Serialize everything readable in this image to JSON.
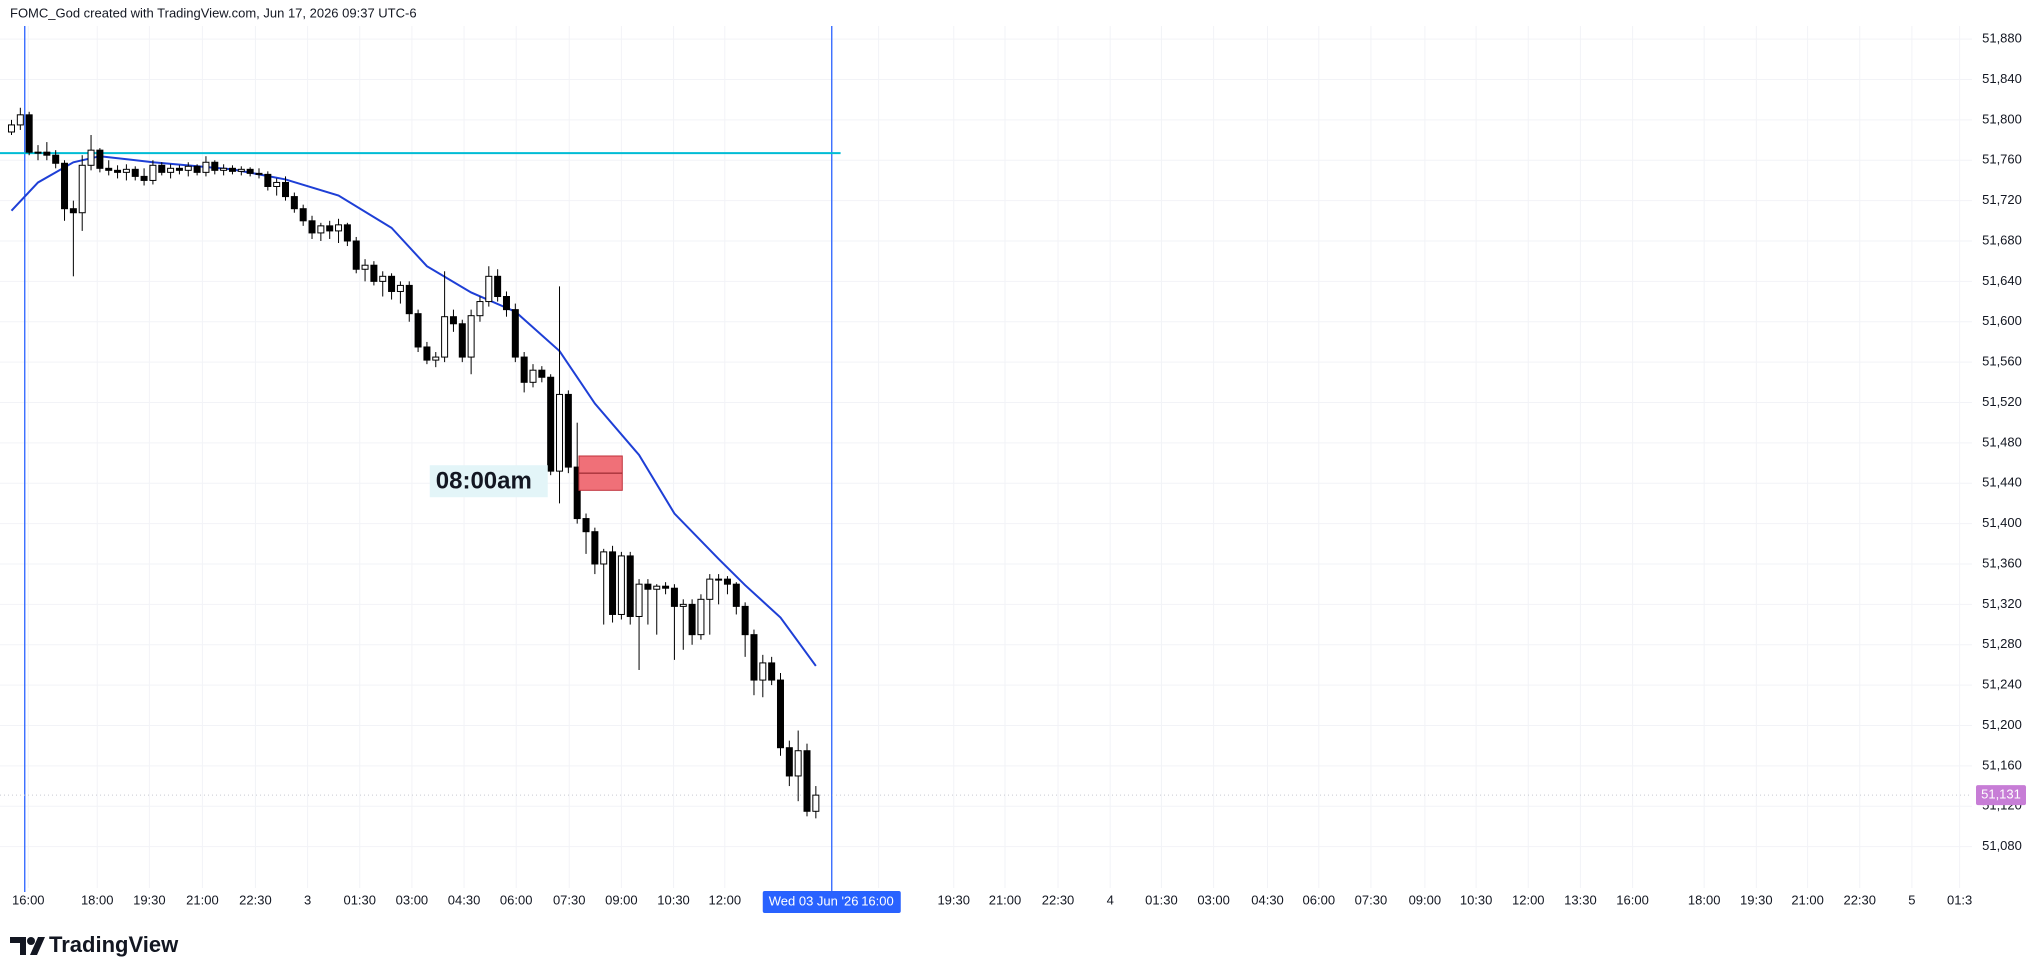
{
  "header": "FOMC_God created with TradingView.com, Jun 17, 2026 09:37 UTC-6",
  "brand": "TradingView",
  "chart_data": {
    "type": "candlestick",
    "x": [
      0,
      1,
      2,
      3,
      4,
      5,
      6,
      7,
      8,
      9,
      10,
      11,
      12,
      13,
      14,
      15,
      16,
      17,
      18,
      19,
      20,
      21,
      22,
      23,
      24,
      25,
      26,
      27,
      28,
      29,
      30,
      31,
      32,
      33,
      34,
      35,
      36,
      37,
      38,
      39,
      40,
      41,
      42,
      43,
      44,
      45,
      46,
      47,
      48,
      49,
      50,
      51,
      52,
      53,
      54,
      55,
      56,
      57,
      58,
      59,
      60,
      61,
      62,
      63,
      64,
      65,
      66,
      67,
      68,
      69,
      70,
      71,
      72,
      73,
      74,
      75,
      76,
      77,
      78,
      79,
      80,
      81,
      82,
      83,
      84,
      85,
      86,
      87,
      88,
      89,
      90,
      91
    ],
    "ohlc": [
      [
        51788,
        51800,
        51785,
        51795
      ],
      [
        51795,
        51812,
        51790,
        51805
      ],
      [
        51805,
        51808,
        51765,
        51768
      ],
      [
        51768,
        51775,
        51760,
        51768
      ],
      [
        51768,
        51778,
        51760,
        51765
      ],
      [
        51765,
        51770,
        51752,
        51757
      ],
      [
        51757,
        51760,
        51700,
        51712
      ],
      [
        51712,
        51720,
        51645,
        51708
      ],
      [
        51708,
        51765,
        51690,
        51755
      ],
      [
        51755,
        51785,
        51750,
        51770
      ],
      [
        51770,
        51772,
        51748,
        51752
      ],
      [
        51752,
        51760,
        51745,
        51750
      ],
      [
        51750,
        51755,
        51742,
        51748
      ],
      [
        51748,
        51756,
        51740,
        51751
      ],
      [
        51751,
        51754,
        51740,
        51744
      ],
      [
        51744,
        51752,
        51735,
        51740
      ],
      [
        51740,
        51760,
        51736,
        51755
      ],
      [
        51755,
        51758,
        51745,
        51748
      ],
      [
        51748,
        51756,
        51742,
        51752
      ],
      [
        51752,
        51755,
        51746,
        51750
      ],
      [
        51750,
        51758,
        51744,
        51754
      ],
      [
        51754,
        51756,
        51745,
        51748
      ],
      [
        51748,
        51764,
        51744,
        51758
      ],
      [
        51758,
        51760,
        51746,
        51750
      ],
      [
        51750,
        51756,
        51745,
        51752
      ],
      [
        51752,
        51755,
        51746,
        51749
      ],
      [
        51749,
        51754,
        51745,
        51751
      ],
      [
        51751,
        51753,
        51744,
        51747
      ],
      [
        51747,
        51752,
        51742,
        51746
      ],
      [
        51746,
        51749,
        51730,
        51734
      ],
      [
        51734,
        51742,
        51725,
        51738
      ],
      [
        51738,
        51744,
        51720,
        51724
      ],
      [
        51724,
        51728,
        51708,
        51712
      ],
      [
        51712,
        51716,
        51695,
        51700
      ],
      [
        51700,
        51705,
        51682,
        51688
      ],
      [
        51688,
        51698,
        51680,
        51695
      ],
      [
        51695,
        51700,
        51682,
        51690
      ],
      [
        51690,
        51702,
        51678,
        51696
      ],
      [
        51696,
        51698,
        51675,
        51680
      ],
      [
        51680,
        51684,
        51648,
        51652
      ],
      [
        51652,
        51662,
        51640,
        51656
      ],
      [
        51656,
        51660,
        51636,
        51640
      ],
      [
        51640,
        51650,
        51625,
        51645
      ],
      [
        51645,
        51648,
        51622,
        51630
      ],
      [
        51630,
        51640,
        51618,
        51636
      ],
      [
        51636,
        51640,
        51600,
        51608
      ],
      [
        51608,
        51612,
        51570,
        51575
      ],
      [
        51575,
        51580,
        51558,
        51562
      ],
      [
        51562,
        51570,
        51555,
        51565
      ],
      [
        51565,
        51650,
        51560,
        51605
      ],
      [
        51605,
        51612,
        51590,
        51598
      ],
      [
        51598,
        51602,
        51560,
        51565
      ],
      [
        51565,
        51612,
        51548,
        51606
      ],
      [
        51606,
        51625,
        51600,
        51620
      ],
      [
        51620,
        51655,
        51615,
        51645
      ],
      [
        51645,
        51652,
        51620,
        51625
      ],
      [
        51625,
        51630,
        51605,
        51612
      ],
      [
        51612,
        51618,
        51560,
        51565
      ],
      [
        51565,
        51570,
        51530,
        51540
      ],
      [
        51540,
        51558,
        51535,
        51552
      ],
      [
        51552,
        51556,
        51540,
        51545
      ],
      [
        51545,
        51548,
        51448,
        51452
      ],
      [
        51452,
        51635,
        51420,
        51528
      ],
      [
        51528,
        51532,
        51450,
        51456
      ],
      [
        51456,
        51500,
        51400,
        51405
      ],
      [
        51405,
        51410,
        51370,
        51392
      ],
      [
        51392,
        51396,
        51350,
        51360
      ],
      [
        51360,
        51375,
        51300,
        51372
      ],
      [
        51372,
        51378,
        51302,
        51310
      ],
      [
        51310,
        51372,
        51305,
        51368
      ],
      [
        51368,
        51372,
        51300,
        51308
      ],
      [
        51308,
        51345,
        51255,
        51340
      ],
      [
        51340,
        51345,
        51300,
        51335
      ],
      [
        51335,
        51340,
        51290,
        51338
      ],
      [
        51338,
        51342,
        51330,
        51336
      ],
      [
        51336,
        51340,
        51265,
        51318
      ],
      [
        51318,
        51325,
        51275,
        51320
      ],
      [
        51320,
        51325,
        51280,
        51290
      ],
      [
        51290,
        51330,
        51285,
        51325
      ],
      [
        51325,
        51350,
        51290,
        51345
      ],
      [
        51345,
        51350,
        51320,
        51345
      ],
      [
        51345,
        51348,
        51330,
        51340
      ],
      [
        51340,
        51342,
        51310,
        51318
      ],
      [
        51318,
        51322,
        51268,
        51290
      ],
      [
        51290,
        51295,
        51230,
        51245
      ],
      [
        51245,
        51270,
        51228,
        51262
      ],
      [
        51262,
        51268,
        51240,
        51245
      ],
      [
        51245,
        51252,
        51170,
        51178
      ],
      [
        51178,
        51185,
        51140,
        51150
      ],
      [
        51150,
        51195,
        51125,
        51175
      ],
      [
        51175,
        51182,
        51110,
        51115
      ],
      [
        51115,
        51140,
        51108,
        51131
      ]
    ],
    "color_up": "#ffffff",
    "color_down": "#000000",
    "xlim": [
      -1.3,
      221.8
    ],
    "ylim": [
      51039,
      51893
    ],
    "grid": true,
    "xticks": [
      {
        "value": 1.9,
        "label": "16:00"
      },
      {
        "value": 9.7,
        "label": "18:00"
      },
      {
        "value": 15.6,
        "label": "19:30"
      },
      {
        "value": 21.6,
        "label": "21:00"
      },
      {
        "value": 27.6,
        "label": "22:30"
      },
      {
        "value": 33.5,
        "label": "3"
      },
      {
        "value": 39.4,
        "label": "01:30"
      },
      {
        "value": 45.3,
        "label": "03:00"
      },
      {
        "value": 51.2,
        "label": "04:30"
      },
      {
        "value": 57.1,
        "label": "06:00"
      },
      {
        "value": 63.1,
        "label": "07:30"
      },
      {
        "value": 69,
        "label": "09:00"
      },
      {
        "value": 74.9,
        "label": "10:30"
      },
      {
        "value": 80.7,
        "label": "12:00"
      },
      {
        "value": 98.1,
        "label": "16:00"
      },
      {
        "value": 106.6,
        "label": "19:30"
      },
      {
        "value": 112.4,
        "label": "21:00"
      },
      {
        "value": 118.4,
        "label": "22:30"
      },
      {
        "value": 124.3,
        "label": "4"
      },
      {
        "value": 130.1,
        "label": "01:30"
      },
      {
        "value": 136,
        "label": "03:00"
      },
      {
        "value": 142.1,
        "label": "04:30"
      },
      {
        "value": 147.9,
        "label": "06:00"
      },
      {
        "value": 153.8,
        "label": "07:30"
      },
      {
        "value": 159.9,
        "label": "09:00"
      },
      {
        "value": 165.7,
        "label": "10:30"
      },
      {
        "value": 171.6,
        "label": "12:00"
      },
      {
        "value": 177.5,
        "label": "13:30"
      },
      {
        "value": 183.4,
        "label": "16:00"
      },
      {
        "value": 191.5,
        "label": "18:00"
      },
      {
        "value": 197.4,
        "label": "19:30"
      },
      {
        "value": 203.2,
        "label": "21:00"
      },
      {
        "value": 209.1,
        "label": "22:30"
      },
      {
        "value": 215,
        "label": "5"
      },
      {
        "value": 220.4,
        "label": "01:3"
      }
    ],
    "yticks": [
      {
        "value": 51080,
        "label": "51,080"
      },
      {
        "value": 51120,
        "label": "51,120"
      },
      {
        "value": 51160,
        "label": "51,160"
      },
      {
        "value": 51200,
        "label": "51,200"
      },
      {
        "value": 51240,
        "label": "51,240"
      },
      {
        "value": 51280,
        "label": "51,280"
      },
      {
        "value": 51320,
        "label": "51,320"
      },
      {
        "value": 51360,
        "label": "51,360"
      },
      {
        "value": 51400,
        "label": "51,400"
      },
      {
        "value": 51440,
        "label": "51,440"
      },
      {
        "value": 51480,
        "label": "51,480"
      },
      {
        "value": 51520,
        "label": "51,520"
      },
      {
        "value": 51560,
        "label": "51,560"
      },
      {
        "value": 51600,
        "label": "51,600"
      },
      {
        "value": 51640,
        "label": "51,640"
      },
      {
        "value": 51680,
        "label": "51,680"
      },
      {
        "value": 51720,
        "label": "51,720"
      },
      {
        "value": 51760,
        "label": "51,760"
      },
      {
        "value": 51800,
        "label": "51,800"
      },
      {
        "value": 51840,
        "label": "51,840"
      },
      {
        "value": 51880,
        "label": "51,880"
      }
    ],
    "moving_average": {
      "color": "#1e3fd6",
      "x": [
        0,
        3,
        7,
        10,
        16,
        25,
        31,
        37,
        43,
        47,
        52,
        57,
        62,
        66,
        71,
        75,
        80,
        83,
        87,
        91
      ],
      "values": [
        51710,
        51738,
        51758,
        51764,
        51758,
        51751,
        51741,
        51725,
        51693,
        51655,
        51629,
        51610,
        51571,
        51519,
        51468,
        51410,
        51365,
        51339,
        51307,
        51259
      ]
    },
    "hlines": [
      {
        "value": 51767,
        "from": -1.3,
        "to": 93.8,
        "color": "#00bcd4"
      }
    ],
    "vlines": [
      {
        "value": 1.5,
        "color": "#2962ff"
      },
      {
        "value": 92.8,
        "color": "#2962ff"
      }
    ],
    "zones": [
      {
        "x": [
          64.2,
          69.1
        ],
        "y": [
          51433,
          51467
        ],
        "mid": 51450,
        "color": "#f07078"
      }
    ],
    "annotations": [
      {
        "text": "08:00am",
        "x": 48,
        "y": 51442
      }
    ],
    "crosshair": {
      "x": 92.8,
      "date": "Wed 03 Jun '26",
      "time": "16:00"
    },
    "last_price": {
      "value": 51131,
      "label": "51,131",
      "color": "#c77dd6"
    }
  }
}
